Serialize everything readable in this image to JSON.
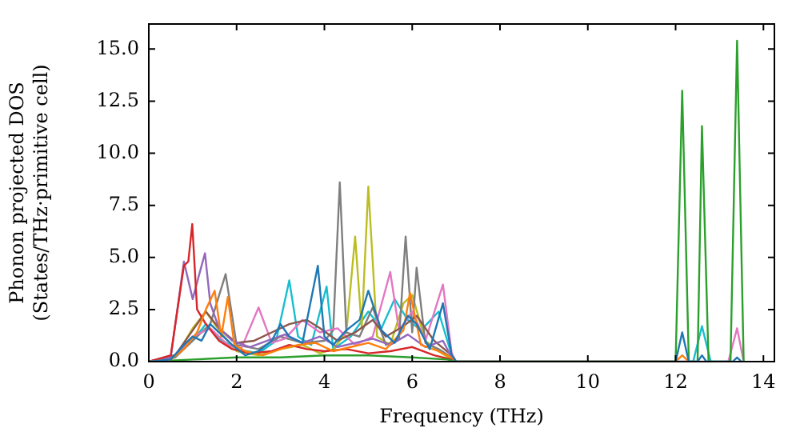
{
  "chart_data": {
    "type": "line",
    "xlabel": "Frequency (THz)",
    "ylabel": "Phonon projected DOS\n(States/THz·primitive cell)",
    "xlim": [
      0,
      14.25
    ],
    "xticks": [
      0,
      2,
      4,
      6,
      8,
      10,
      12,
      14
    ],
    "ylim": [
      0,
      16.2
    ],
    "yticks": [
      {
        "value": 0,
        "label": "0.0"
      },
      2.5,
      {
        "value": 5,
        "label": "5.0"
      },
      7.5,
      {
        "value": 10,
        "label": "10.0"
      },
      12.5,
      {
        "value": 15,
        "label": "15.0"
      }
    ],
    "legend": false,
    "marker": "none",
    "line_style": "solid",
    "series": [
      {
        "color": "#1f77b4",
        "x": [
          0,
          0.5,
          0.8,
          1.0,
          1.2,
          1.4,
          1.6,
          1.9,
          2.2,
          2.5,
          2.8,
          3.0,
          3.2,
          3.5,
          3.85,
          4.0,
          4.2,
          4.5,
          4.8,
          5.0,
          5.3,
          5.6,
          5.9,
          6.1,
          6.4,
          6.7,
          6.9,
          7.0,
          12.0,
          12.15,
          12.3,
          12.5,
          12.6,
          12.7,
          13.3,
          13.4,
          13.5
        ],
        "values": [
          0,
          0.1,
          0.8,
          1.2,
          1.0,
          1.8,
          1.4,
          0.8,
          0.3,
          0.5,
          1.0,
          1.8,
          1.2,
          0.9,
          4.6,
          1.2,
          0.8,
          1.5,
          2.0,
          3.4,
          1.5,
          0.9,
          2.2,
          1.8,
          0.6,
          2.8,
          0.3,
          0,
          0,
          1.4,
          0,
          0,
          0.3,
          0,
          0,
          0.2,
          0
        ]
      },
      {
        "color": "#ff7f0e",
        "x": [
          0,
          0.5,
          0.8,
          1.1,
          1.3,
          1.5,
          1.65,
          1.8,
          1.95,
          2.2,
          2.6,
          3.0,
          3.4,
          3.8,
          4.2,
          4.6,
          5.0,
          5.4,
          5.8,
          5.95,
          6.2,
          6.6,
          6.9,
          7.0,
          12.0,
          12.15,
          12.3
        ],
        "values": [
          0,
          0.1,
          0.6,
          1.4,
          2.5,
          3.4,
          1.2,
          3.1,
          0.8,
          0.5,
          0.3,
          0.6,
          0.8,
          0.9,
          0.5,
          0.7,
          0.9,
          0.6,
          1.5,
          3.3,
          0.8,
          0.5,
          0.2,
          0,
          0,
          0.3,
          0
        ]
      },
      {
        "color": "#2ca02c",
        "x": [
          0,
          1.0,
          2.0,
          3.0,
          4.0,
          5.0,
          6.0,
          6.8,
          7.0,
          12.0,
          12.15,
          12.3,
          12.5,
          12.6,
          12.75,
          13.25,
          13.4,
          13.55
        ],
        "values": [
          0,
          0.1,
          0.2,
          0.2,
          0.3,
          0.3,
          0.2,
          0.1,
          0,
          0,
          13.0,
          0,
          0,
          11.3,
          0,
          0,
          15.4,
          0
        ]
      },
      {
        "color": "#d62728",
        "x": [
          0,
          0.5,
          0.8,
          0.9,
          0.99,
          1.1,
          1.3,
          1.6,
          1.9,
          2.3,
          2.8,
          3.2,
          3.6,
          4.0,
          4.5,
          5.0,
          5.5,
          6.0,
          6.5,
          6.9,
          7.0
        ],
        "values": [
          0,
          0.3,
          4.6,
          4.8,
          6.6,
          2.5,
          1.8,
          1.0,
          0.6,
          0.4,
          0.5,
          0.8,
          0.6,
          0.5,
          0.6,
          0.4,
          0.5,
          0.7,
          0.3,
          0.1,
          0
        ]
      },
      {
        "color": "#9467bd",
        "x": [
          0,
          0.5,
          0.8,
          1.0,
          1.15,
          1.28,
          1.4,
          1.6,
          1.9,
          2.3,
          2.7,
          3.1,
          3.5,
          3.9,
          4.3,
          4.7,
          5.1,
          5.5,
          5.9,
          6.3,
          6.7,
          6.9,
          7.0
        ],
        "values": [
          0,
          0.2,
          4.8,
          3.0,
          4.2,
          5.2,
          2.8,
          1.6,
          1.0,
          0.7,
          1.0,
          1.3,
          0.9,
          1.2,
          0.7,
          0.9,
          1.1,
          0.8,
          1.3,
          0.7,
          1.0,
          0.2,
          0
        ]
      },
      {
        "color": "#8c564b",
        "x": [
          0,
          0.6,
          1.0,
          1.3,
          1.6,
          2.0,
          2.4,
          2.8,
          3.2,
          3.6,
          3.9,
          4.3,
          4.7,
          5.1,
          5.4,
          5.8,
          6.1,
          6.5,
          6.9,
          7.0
        ],
        "values": [
          0,
          0.3,
          1.5,
          2.4,
          1.6,
          0.9,
          1.0,
          1.4,
          1.8,
          2.0,
          1.6,
          1.0,
          1.4,
          2.0,
          1.2,
          1.7,
          2.2,
          1.0,
          0.3,
          0
        ]
      },
      {
        "color": "#e377c2",
        "x": [
          0,
          0.6,
          1.0,
          1.4,
          1.8,
          2.1,
          2.5,
          2.8,
          3.1,
          3.5,
          3.9,
          4.3,
          4.7,
          5.1,
          5.5,
          5.7,
          6.0,
          6.3,
          6.7,
          6.9,
          7.0,
          13.2,
          13.4,
          13.55
        ],
        "values": [
          0,
          0.3,
          1.2,
          1.6,
          0.8,
          0.6,
          2.6,
          0.9,
          1.1,
          2.0,
          1.4,
          1.6,
          0.8,
          1.2,
          4.3,
          1.5,
          2.4,
          1.0,
          3.7,
          0.4,
          0,
          0,
          1.6,
          0
        ]
      },
      {
        "color": "#7f7f7f",
        "x": [
          0,
          0.6,
          1.0,
          1.4,
          1.75,
          2.0,
          2.5,
          3.0,
          3.5,
          4.0,
          4.2,
          4.35,
          4.5,
          4.8,
          5.1,
          5.4,
          5.7,
          5.85,
          6.0,
          6.1,
          6.3,
          6.6,
          6.9,
          7.0
        ],
        "values": [
          0,
          0.2,
          1.0,
          1.8,
          4.2,
          0.8,
          0.6,
          1.2,
          0.9,
          1.0,
          1.5,
          8.6,
          1.4,
          1.2,
          2.6,
          0.8,
          1.1,
          6.0,
          1.4,
          4.5,
          0.9,
          0.6,
          0.2,
          0
        ]
      },
      {
        "color": "#bcbd22",
        "x": [
          0,
          0.6,
          1.0,
          1.3,
          1.6,
          2.0,
          2.5,
          3.0,
          3.5,
          3.9,
          4.2,
          4.5,
          4.7,
          4.85,
          5.0,
          5.2,
          5.5,
          5.8,
          6.0,
          6.3,
          6.6,
          6.9,
          7.0
        ],
        "values": [
          0,
          0.2,
          1.6,
          2.4,
          1.5,
          0.5,
          0.3,
          0.6,
          0.8,
          0.4,
          0.6,
          1.4,
          6.0,
          1.6,
          8.4,
          1.2,
          0.8,
          2.8,
          3.2,
          1.0,
          0.5,
          0.1,
          0
        ]
      },
      {
        "color": "#17becf",
        "x": [
          0,
          0.6,
          1.0,
          1.3,
          1.6,
          2.0,
          2.5,
          2.9,
          3.2,
          3.4,
          3.7,
          4.05,
          4.2,
          4.6,
          5.0,
          5.3,
          5.6,
          5.9,
          6.2,
          6.6,
          6.9,
          7.0,
          12.4,
          12.6,
          12.8
        ],
        "values": [
          0,
          0.3,
          1.0,
          1.8,
          1.1,
          0.6,
          0.4,
          1.0,
          3.9,
          1.2,
          0.8,
          3.6,
          0.6,
          1.2,
          2.4,
          1.6,
          3.0,
          2.0,
          1.5,
          2.4,
          0.3,
          0,
          0,
          1.7,
          0
        ]
      }
    ]
  }
}
